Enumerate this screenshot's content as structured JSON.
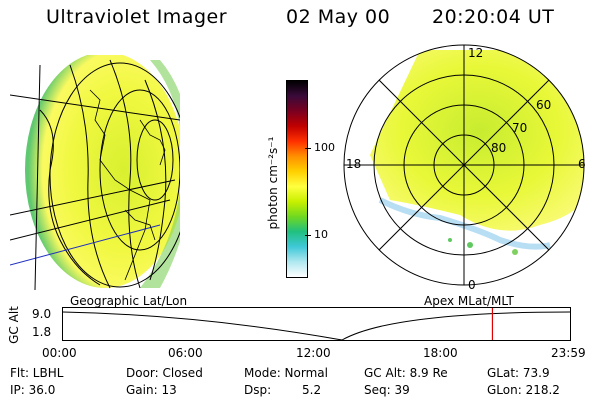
{
  "header": {
    "title": "Ultraviolet Imager",
    "date": "02 May 00",
    "time": "20:20:04 UT"
  },
  "colorbar": {
    "unit_label": "photon cm⁻²s⁻¹",
    "ticks": [
      "100",
      "10"
    ],
    "colors": [
      "#000000",
      "#3a0a3a",
      "#7a0020",
      "#c00000",
      "#ff3000",
      "#ff9000",
      "#ffd000",
      "#ffff40",
      "#c8f000",
      "#70d820",
      "#20c080",
      "#40c8d8",
      "#b0e8f0",
      "#ffffff"
    ]
  },
  "geo_panel": {
    "caption": "Geographic Lat/Lon"
  },
  "polar_panel": {
    "caption": "Apex MLat/MLT",
    "mlt_labels": [
      "12",
      "18",
      "6",
      "0"
    ],
    "lat_labels": [
      "60",
      "70",
      "80"
    ]
  },
  "altitude_plot": {
    "axis_label": "GC Alt",
    "y_ticks": [
      "9.0",
      "1.8"
    ],
    "x_ticks": [
      "00:00",
      "06:00",
      "12:00",
      "18:00",
      "23:59"
    ],
    "current_time_fraction": 0.847
  },
  "info": {
    "filter": "Flt: LBHL",
    "ip": "IP: 36.0",
    "door": "Door: Closed",
    "gain": "Gain: 13",
    "mode": "Mode: Normal",
    "dsp_label": "Dsp:",
    "dsp_value": "5.2",
    "gc_alt": "GC Alt: 8.9 Re",
    "seq": "Seq: 39",
    "glat": "GLat: 73.9",
    "glon": "GLon: 218.2"
  }
}
